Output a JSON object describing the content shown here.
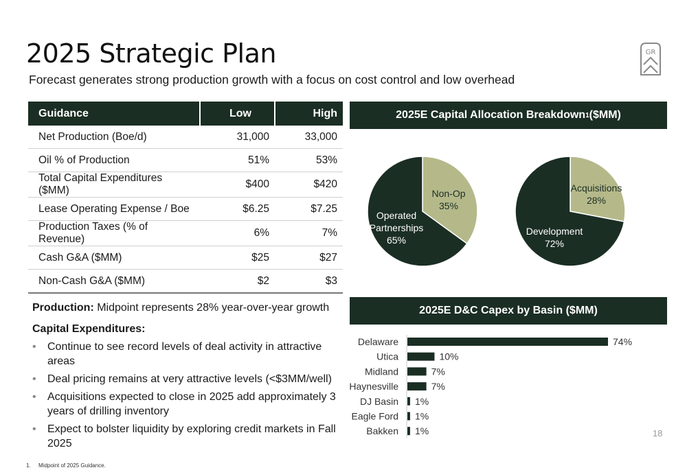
{
  "header": {
    "title": "2025 Strategic Plan",
    "subtitle": "Forecast generates strong production growth with a focus on cost control and low overhead",
    "logo_text": "GR"
  },
  "guidance_table": {
    "headers": [
      "Guidance",
      "Low",
      "High"
    ],
    "rows": [
      {
        "label": "Net Production (Boe/d)",
        "low": "31,000",
        "high": "33,000"
      },
      {
        "label": "Oil % of Production",
        "low": "51%",
        "high": "53%"
      },
      {
        "label": "Total Capital Expenditures ($MM)",
        "low": "$400",
        "high": "$420"
      },
      {
        "label": "Lease Operating Expense / Boe",
        "low": "$6.25",
        "high": "$7.25"
      },
      {
        "label": "Production Taxes (% of Revenue)",
        "low": "6%",
        "high": "7%"
      },
      {
        "label": "Cash G&A ($MM)",
        "low": "$25",
        "high": "$27"
      },
      {
        "label": "Non-Cash G&A ($MM)",
        "low": "$2",
        "high": "$3"
      }
    ]
  },
  "notes": {
    "production_label": "Production:",
    "production_text": " Midpoint represents 28% year-over-year growth",
    "capex_label": "Capital Expenditures:",
    "bullets": [
      "Continue to see record levels of deal activity in attractive areas",
      "Deal pricing remains at very attractive levels (<$3MM/well)",
      "Acquisitions expected to close in 2025 add approximately 3 years of drilling inventory",
      "Expect to bolster liquidity by exploring credit markets in Fall 2025"
    ]
  },
  "colors": {
    "dark_green": "#1b2e24",
    "sage": "#b5b98a",
    "bar": "#1b2e24"
  },
  "chart_data": [
    {
      "type": "pie",
      "title": "2025E Capital Allocation Breakdown",
      "title_sup": "1",
      "title_suffix": " ($MM)",
      "slices": [
        {
          "label_lines": [
            "Non-Op",
            "35%"
          ],
          "value": 35,
          "color": "#b5b98a"
        },
        {
          "label_lines": [
            "Operated",
            "Partnerships",
            "65%"
          ],
          "value": 65,
          "color": "#1b2e24"
        }
      ]
    },
    {
      "type": "pie",
      "slices": [
        {
          "label_lines": [
            "Acquisitions",
            "28%"
          ],
          "value": 28,
          "color": "#b5b98a"
        },
        {
          "label_lines": [
            "Development",
            "72%"
          ],
          "value": 72,
          "color": "#1b2e24"
        }
      ]
    },
    {
      "type": "bar",
      "orientation": "horizontal",
      "title": "2025E D&C Capex by Basin ($MM)",
      "categories": [
        "Delaware",
        "Utica",
        "Midland",
        "Haynesville",
        "DJ Basin",
        "Eagle Ford",
        "Bakken"
      ],
      "values": [
        74,
        10,
        7,
        7,
        1,
        1,
        1
      ],
      "value_labels": [
        "74%",
        "10%",
        "7%",
        "7%",
        "1%",
        "1%",
        "1%"
      ],
      "xlim": [
        0,
        74
      ]
    }
  ],
  "page_number": "18",
  "footnote": {
    "number": "1.",
    "text": "Midpoint of 2025 Guidance."
  }
}
